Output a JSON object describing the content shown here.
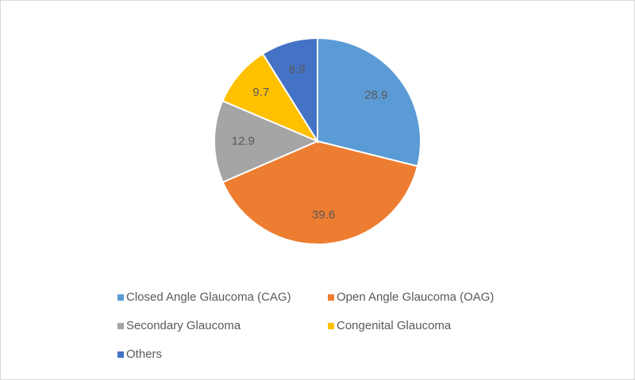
{
  "chart_data": {
    "type": "pie",
    "categories": [
      "Closed Angle Glaucoma (CAG)",
      "Open Angle Glaucoma (OAG)",
      "Secondary Glaucoma",
      "Congenital Glaucoma",
      "Others"
    ],
    "values": [
      28.9,
      39.6,
      12.9,
      9.7,
      8.9
    ],
    "colors": [
      "#5b9bd5",
      "#ed7d31",
      "#a5a5a5",
      "#ffc000",
      "#4472c4"
    ],
    "legend": "bottom"
  }
}
